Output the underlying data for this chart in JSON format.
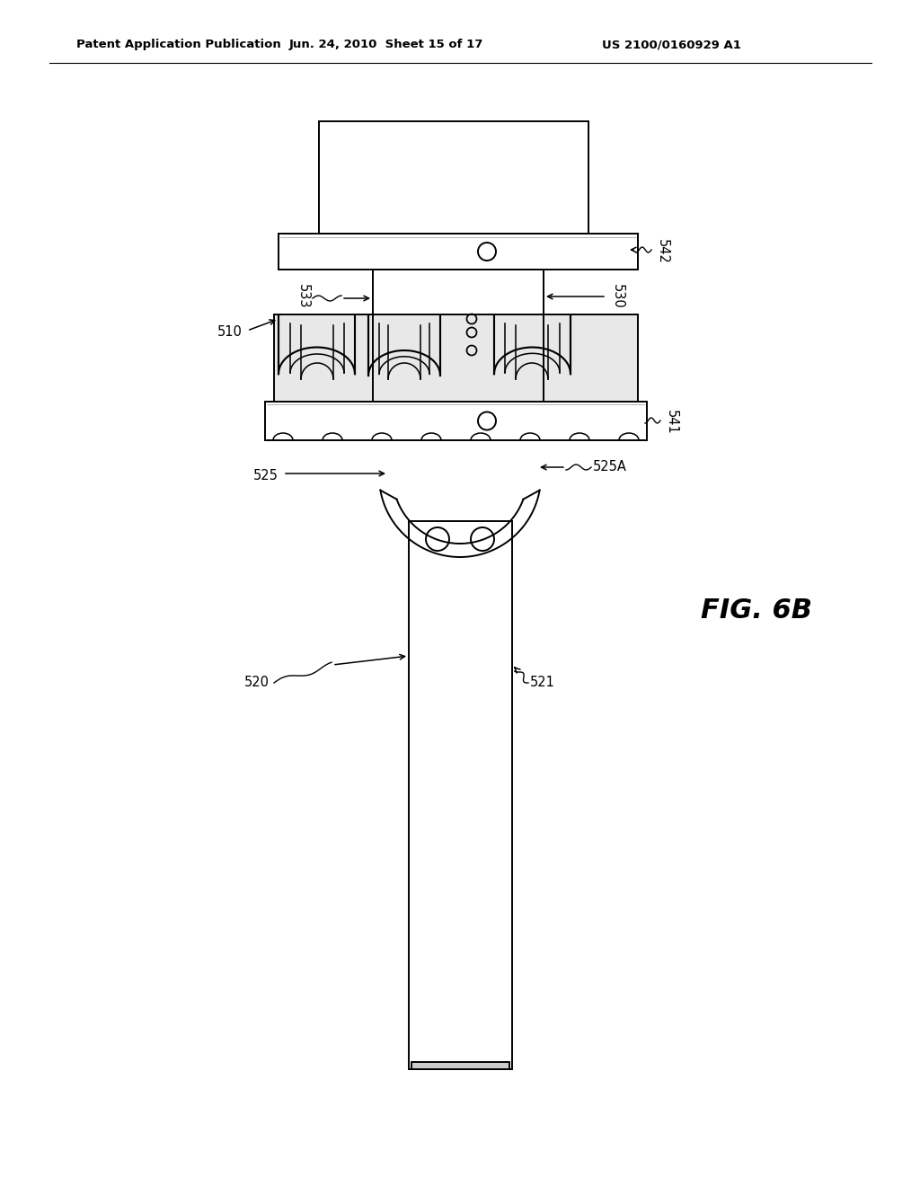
{
  "bg_color": "#ffffff",
  "line_color": "#000000",
  "header_left": "Patent Application Publication",
  "header_mid": "Jun. 24, 2010  Sheet 15 of 17",
  "header_right": "US 2100/0160929 A1",
  "fig_label": "FIG. 6B",
  "lw": 1.4
}
